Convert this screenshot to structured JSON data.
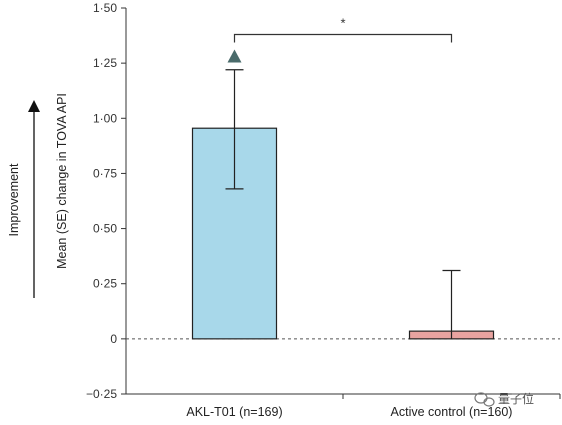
{
  "chart_data": {
    "type": "bar",
    "categories": [
      "AKL-T01 (n=169)",
      "Active control (n=160)"
    ],
    "values": [
      0.955,
      0.035
    ],
    "error_bars": [
      {
        "low": 0.68,
        "high": 1.22
      },
      {
        "low": 0.0,
        "high": 0.31
      }
    ],
    "triangle_marker": {
      "category_index": 0,
      "value": 1.28
    },
    "ylabel": "Mean (SE) change in TOVA API",
    "direction_label": "Improvement",
    "ylim": [
      -0.25,
      1.5
    ],
    "yticks": [
      "1·50",
      "1·25",
      "1·00",
      "0·75",
      "0·50",
      "0·25",
      "0",
      "−0·25"
    ],
    "ytick_values": [
      1.5,
      1.25,
      1.0,
      0.75,
      0.5,
      0.25,
      0,
      -0.25
    ],
    "significance": {
      "label": "*",
      "from": 0,
      "to": 1,
      "y": 1.38
    },
    "zero_line": "dashed",
    "grid": false,
    "colors": {
      "bar0": "#a8d8ea",
      "bar1": "#e8a3a0",
      "edge": "#222222",
      "marker": "#4a6b6b"
    }
  },
  "watermark": {
    "text": "量子位"
  }
}
